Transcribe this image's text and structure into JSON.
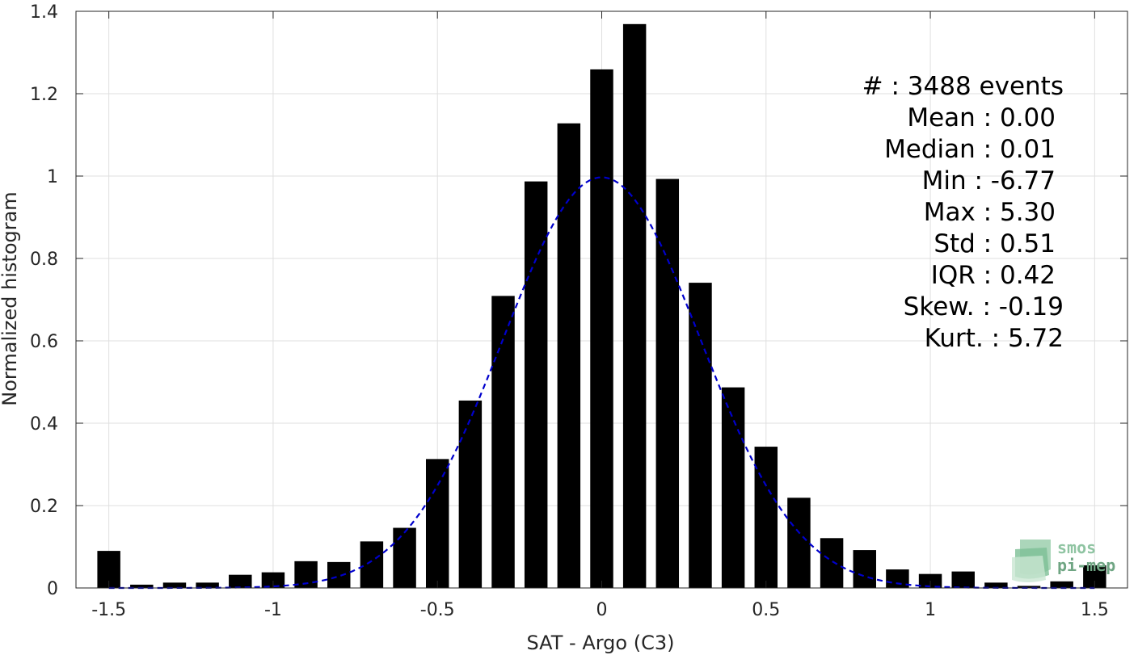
{
  "chart_data": {
    "type": "bar",
    "xlabel": "SAT - Argo (C3)",
    "ylabel": "Normalized histogram",
    "xlim": [
      -1.6,
      1.6
    ],
    "ylim": [
      0,
      1.4
    ],
    "xticks": [
      -1.5,
      -1,
      -0.5,
      0,
      0.5,
      1,
      1.5
    ],
    "xtick_labels": [
      "-1.5",
      "-1",
      "-0.5",
      "0",
      "0.5",
      "1",
      "1.5"
    ],
    "yticks": [
      0,
      0.2,
      0.4,
      0.6,
      0.8,
      1.0,
      1.2,
      1.4
    ],
    "ytick_labels": [
      "0",
      "0.2",
      "0.4",
      "0.6",
      "0.8",
      "1",
      "1.2",
      "1.4"
    ],
    "grid": true,
    "bar_width": 0.07,
    "bar_color": "#000000",
    "x": [
      -1.5,
      -1.4,
      -1.3,
      -1.2,
      -1.1,
      -1.0,
      -0.9,
      -0.8,
      -0.7,
      -0.6,
      -0.5,
      -0.4,
      -0.3,
      -0.2,
      -0.1,
      0.0,
      0.1,
      0.2,
      0.3,
      0.4,
      0.5,
      0.6,
      0.7,
      0.8,
      0.9,
      1.0,
      1.1,
      1.2,
      1.3,
      1.4,
      1.5
    ],
    "values": [
      0.09,
      0.008,
      0.013,
      0.013,
      0.032,
      0.038,
      0.065,
      0.063,
      0.113,
      0.146,
      0.313,
      0.455,
      0.709,
      0.987,
      1.128,
      1.259,
      1.369,
      0.993,
      0.741,
      0.487,
      0.343,
      0.219,
      0.121,
      0.092,
      0.045,
      0.034,
      0.04,
      0.013,
      0.005,
      0.016,
      0.055
    ],
    "fit_curve": {
      "type": "gaussian",
      "mean": 0.0,
      "std": 0.3,
      "peak": 0.997,
      "color": "#0000cc",
      "style": "dashed"
    },
    "annotation_lines": [
      "#  : 3488 events",
      "Mean : 0.00",
      "Median : 0.01",
      "Min : -6.77",
      "Max : 5.30",
      "Std : 0.51",
      "IQR : 0.42",
      "Skew. : -0.19",
      "Kurt. : 5.72"
    ],
    "annotation_placement": "top-right"
  },
  "logo": {
    "line1": "smos",
    "line2": "pi-mep",
    "color": "#6fa583"
  }
}
